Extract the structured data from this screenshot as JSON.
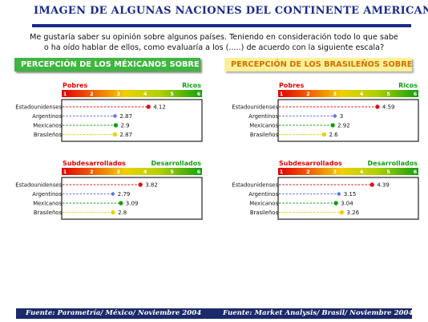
{
  "title": "IMAGEN DE ALGUNAS NACIONES DEL CONTINENTE AMERICANO",
  "intro_line1": "Me gustaría saber su opinión sobre algunos países. Teniendo en consideración todo lo que sabe",
  "intro_line2": "o ha oído hablar de ellos, como evaluaría a los (.....) de acuerdo con la siguiente escala?",
  "banner_left": "PERCEPCIÓN DE LOS MÉXICANOS SOBRE",
  "banner_right": "PERCEPCIÓN DE LOS BRASILEÑOS SOBRE",
  "source_left": "Fuente: Parametría/ México/ Noviembre 2004",
  "source_right": "Fuente: Market Analysis/ Brasil/ Noviembre 2004",
  "colors": {
    "Estadounidenses": "#e01010",
    "Argentinos": "#5a78d8",
    "Mexicanos": "#10a010",
    "Brasileños": "#f0d000"
  },
  "chart_data": [
    {
      "type": "scatter",
      "panel": "mexicans-wealth",
      "scale_low": "Pobres",
      "scale_high": "Ricos",
      "ticks": [
        "1",
        "2",
        "3",
        "4",
        "5",
        "6"
      ],
      "xlim": [
        1,
        6
      ],
      "categories": [
        "Estadounidenses",
        "Argentinos",
        "Mexicanos",
        "Brasileños"
      ],
      "values": [
        4.12,
        2.87,
        2.9,
        2.87
      ],
      "labels": [
        "4.12",
        "2.87",
        "2.9",
        "2.87"
      ]
    },
    {
      "type": "scatter",
      "panel": "brazilians-wealth",
      "scale_low": "Pobres",
      "scale_high": "Ricos",
      "ticks": [
        "1",
        "2",
        "3",
        "4",
        "5",
        "6"
      ],
      "xlim": [
        1,
        6
      ],
      "categories": [
        "Estadounidenses",
        "Argentinos",
        "Mexicanos",
        "Brasileños"
      ],
      "values": [
        4.59,
        3,
        2.92,
        2.6
      ],
      "labels": [
        "4.59",
        "3",
        "2.92",
        "2.6"
      ]
    },
    {
      "type": "scatter",
      "panel": "mexicans-development",
      "scale_low": "Subdesarrollados",
      "scale_high": "Desarrollados",
      "ticks": [
        "1",
        "2",
        "3",
        "4",
        "5",
        "6"
      ],
      "xlim": [
        1,
        6
      ],
      "categories": [
        "Estadounidenses",
        "Argentinos",
        "Mexicanos",
        "Brasileños"
      ],
      "values": [
        3.82,
        2.79,
        3.09,
        2.8
      ],
      "labels": [
        "3.82",
        "2.79",
        "3.09",
        "2.8"
      ]
    },
    {
      "type": "scatter",
      "panel": "brazilians-development",
      "scale_low": "Subdesarrollados",
      "scale_high": "Desarrollados",
      "ticks": [
        "1",
        "2",
        "3",
        "4",
        "5",
        "6"
      ],
      "xlim": [
        1,
        6
      ],
      "categories": [
        "Estadounidenses",
        "Argentinos",
        "Mexicanos",
        "Brasileños"
      ],
      "values": [
        4.39,
        3.15,
        3.04,
        3.26
      ],
      "labels": [
        "4.39",
        "3.15",
        "3.04",
        "3.26"
      ]
    }
  ]
}
